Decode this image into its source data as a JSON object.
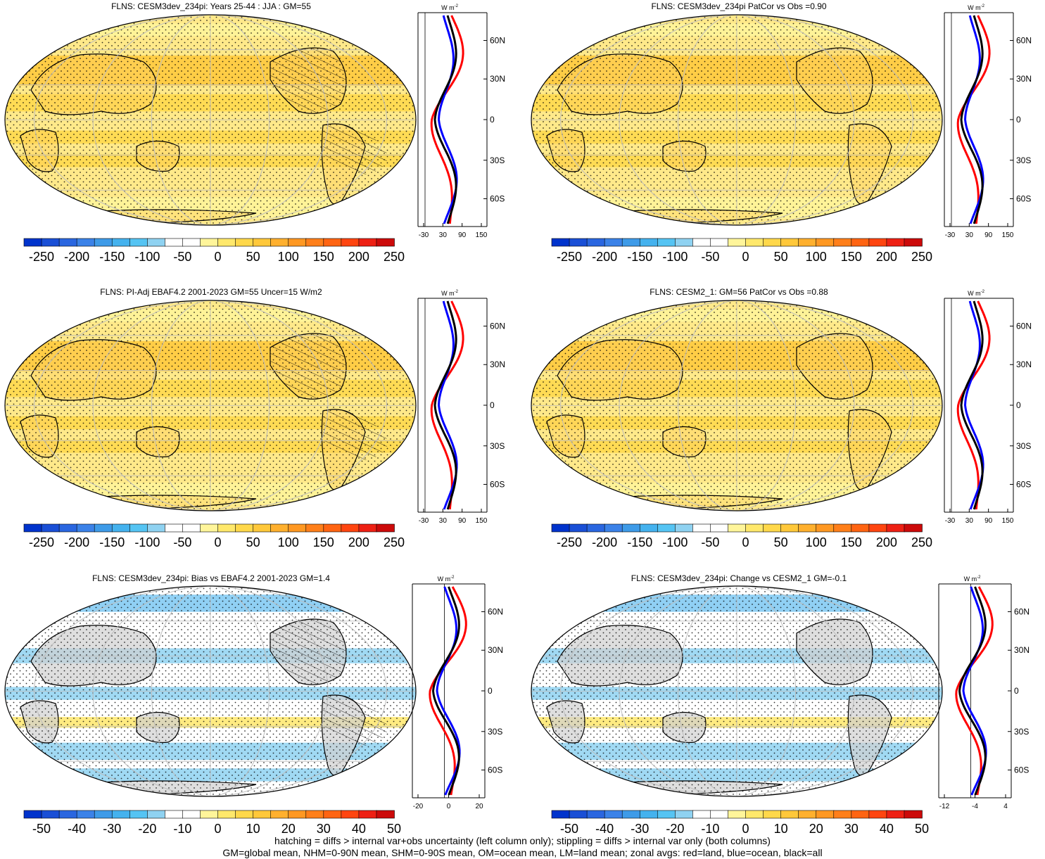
{
  "colors": {
    "coast": "#000000",
    "land_line": "#000000",
    "land_red": "#ff0000",
    "ocean_blue": "#0000ff",
    "all_black": "#000000",
    "missing": "#c8c8c8"
  },
  "absolute_colorbar": {
    "colors": [
      "#0033cc",
      "#1a4fd6",
      "#2a66e0",
      "#3b82e8",
      "#3e9be8",
      "#44b2ee",
      "#55c4f3",
      "#8fd2f1",
      "#ffffff",
      "#ffffff",
      "#fff59a",
      "#ffe86b",
      "#ffd84a",
      "#ffc83a",
      "#ffb02e",
      "#ff9822",
      "#ff7f1a",
      "#ff6412",
      "#ff4510",
      "#ee2014",
      "#cc0a0a"
    ],
    "labels": [
      "-250",
      "-200",
      "-150",
      "-100",
      "-50",
      "0",
      "50",
      "100",
      "150",
      "200",
      "250"
    ]
  },
  "difference_colorbar": {
    "colors": [
      "#0033cc",
      "#1a4fd6",
      "#2a66e0",
      "#3b82e8",
      "#3e9be8",
      "#44b2ee",
      "#55c4f3",
      "#8fd2f1",
      "#ffffff",
      "#ffffff",
      "#fff59a",
      "#ffe86b",
      "#ffd84a",
      "#ffc83a",
      "#ffb02e",
      "#ff9822",
      "#ff7f1a",
      "#ff6412",
      "#ff4510",
      "#ee2014",
      "#cc0a0a"
    ],
    "labels": [
      "-50",
      "-40",
      "-30",
      "-20",
      "-10",
      "0",
      "10",
      "20",
      "30",
      "40",
      "50"
    ]
  },
  "zonal_lat_labels": [
    "60N",
    "30N",
    "0",
    "30S",
    "60S"
  ],
  "zonal_units": "W m",
  "zonal_units_exp": "-2",
  "panels": [
    {
      "title": "FLNS: CESM3dev_234pi: Years 25-44 : JJA : GM=55",
      "colorbar": "absolute",
      "xticks": [
        "-30",
        "30",
        "90",
        "150"
      ],
      "fill": "#ffe98a",
      "hatched": true
    },
    {
      "title": "FLNS: CESM3dev_234pi PatCor vs Obs =0.90",
      "colorbar": "absolute",
      "xticks": [
        "-30",
        "30",
        "90",
        "150"
      ],
      "fill": "#ffe98a",
      "hatched": false
    },
    {
      "title": "FLNS: PI-Adj EBAF4.2 2001-2023 GM=55 Uncer=15 W/m2",
      "colorbar": "absolute",
      "xticks": [
        "-30",
        "30",
        "90",
        "150"
      ],
      "fill": "#ffe98a",
      "hatched": true
    },
    {
      "title": "FLNS: CESM2_1: GM=56 PatCor vs Obs =0.88",
      "colorbar": "absolute",
      "xticks": [
        "-30",
        "30",
        "90",
        "150"
      ],
      "fill": "#ffe98a",
      "hatched": false
    },
    {
      "title": "FLNS: CESM3dev_234pi: Bias vs EBAF4.2 2001-2023 GM=1.4",
      "colorbar": "difference",
      "xticks": [
        "-20",
        "0",
        "20"
      ],
      "fill": "#ffffff",
      "hatched": true
    },
    {
      "title": "FLNS: CESM3dev_234pi: Change vs CESM2_1 GM=-0.1",
      "colorbar": "difference",
      "xticks": [
        "-12",
        "-4",
        "4"
      ],
      "fill": "#ffffff",
      "hatched": false
    }
  ],
  "footer": {
    "line1": "hatching = diffs > internal var+obs uncertainty (left column only); stippling = diffs > internal var only (both columns)",
    "line2": "GM=global mean, NHM=0-90N mean, SHM=0-90S mean, OM=ocean mean, LM=land mean; zonal avgs: red=land, blue=ocean, black=all"
  }
}
